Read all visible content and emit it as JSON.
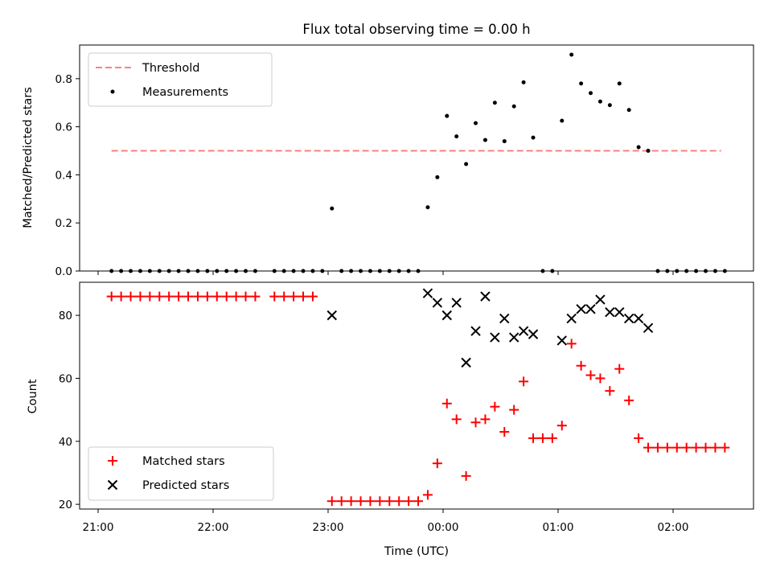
{
  "chart_data": [
    {
      "type": "scatter",
      "title": "Flux total observing time = 0.00 h",
      "xlabel": "",
      "ylabel": "Matched/Predicted stars",
      "ylim": [
        0,
        0.94
      ],
      "yticks": [
        "0.0",
        "0.2",
        "0.4",
        "0.6",
        "0.8"
      ],
      "grid": false,
      "legend": "upper left",
      "threshold": {
        "name": "Threshold",
        "value": 0.5,
        "x_range": [
          "21:07",
          "02:25"
        ],
        "color": "#ff7f7f"
      },
      "series": [
        {
          "name": "Measurements",
          "color": "#000000",
          "x": [
            "21:07",
            "21:12",
            "21:17",
            "21:22",
            "21:27",
            "21:32",
            "21:37",
            "21:42",
            "21:47",
            "21:52",
            "21:57",
            "22:02",
            "22:07",
            "22:12",
            "22:17",
            "22:22",
            "22:32",
            "22:37",
            "22:42",
            "22:47",
            "22:52",
            "22:57",
            "23:02",
            "23:07",
            "23:12",
            "23:17",
            "23:22",
            "23:27",
            "23:32",
            "23:37",
            "23:42",
            "23:47",
            "23:52",
            "23:57",
            "00:02",
            "00:07",
            "00:12",
            "00:17",
            "00:22",
            "00:27",
            "00:32",
            "00:37",
            "00:42",
            "00:47",
            "00:52",
            "00:57",
            "01:02",
            "01:07",
            "01:12",
            "01:17",
            "01:22",
            "01:27",
            "01:32",
            "01:37",
            "01:42",
            "01:47",
            "01:52",
            "01:57",
            "02:02",
            "02:07",
            "02:12",
            "02:17",
            "02:22",
            "02:27"
          ],
          "y": [
            0,
            0,
            0,
            0,
            0,
            0,
            0,
            0,
            0,
            0,
            0,
            0,
            0,
            0,
            0,
            0,
            0,
            0,
            0,
            0,
            0,
            0,
            0.26,
            0,
            0,
            0,
            0,
            0,
            0,
            0,
            0,
            0,
            0.265,
            0.39,
            0.645,
            0.56,
            0.445,
            0.615,
            0.545,
            0.7,
            0.54,
            0.685,
            0.785,
            0.555,
            0,
            0,
            0.625,
            0.9,
            0.78,
            0.74,
            0.705,
            0.69,
            0.78,
            0.67,
            0.515,
            0.5,
            0,
            0,
            0,
            0,
            0,
            0,
            0,
            0
          ]
        }
      ]
    },
    {
      "type": "scatter",
      "title": "",
      "xlabel": "Time (UTC)",
      "ylabel": "Count",
      "ylim": [
        18.5,
        90.5
      ],
      "yticks": [
        "20",
        "40",
        "60",
        "80"
      ],
      "xticks": [
        "21:00",
        "22:00",
        "23:00",
        "00:00",
        "01:00",
        "02:00"
      ],
      "grid": false,
      "legend": "lower left",
      "series": [
        {
          "name": "Matched stars",
          "marker": "plus",
          "color": "#ff0000",
          "x": [
            "21:07",
            "21:12",
            "21:17",
            "21:22",
            "21:27",
            "21:32",
            "21:37",
            "21:42",
            "21:47",
            "21:52",
            "21:57",
            "22:02",
            "22:07",
            "22:12",
            "22:17",
            "22:22",
            "22:32",
            "22:37",
            "22:42",
            "22:47",
            "22:52",
            "23:02",
            "23:07",
            "23:12",
            "23:17",
            "23:22",
            "23:27",
            "23:32",
            "23:37",
            "23:42",
            "23:47",
            "23:52",
            "23:57",
            "00:02",
            "00:07",
            "00:12",
            "00:17",
            "00:22",
            "00:27",
            "00:32",
            "00:37",
            "00:42",
            "00:47",
            "00:52",
            "00:57",
            "01:02",
            "01:07",
            "01:12",
            "01:17",
            "01:22",
            "01:27",
            "01:32",
            "01:37",
            "01:42",
            "01:47",
            "01:52",
            "01:57",
            "02:02",
            "02:07",
            "02:12",
            "02:17",
            "02:22",
            "02:27"
          ],
          "y": [
            86,
            86,
            86,
            86,
            86,
            86,
            86,
            86,
            86,
            86,
            86,
            86,
            86,
            86,
            86,
            86,
            86,
            86,
            86,
            86,
            86,
            21,
            21,
            21,
            21,
            21,
            21,
            21,
            21,
            21,
            21,
            23,
            33,
            52,
            47,
            29,
            46,
            47,
            51,
            43,
            50,
            59,
            41,
            41,
            41,
            45,
            71,
            64,
            61,
            60,
            56,
            63,
            53,
            41,
            38,
            38,
            38,
            38,
            38,
            38,
            38,
            38,
            38
          ]
        },
        {
          "name": "Predicted stars",
          "marker": "x",
          "color": "#000000",
          "x": [
            "23:02",
            "23:52",
            "23:57",
            "00:02",
            "00:07",
            "00:12",
            "00:17",
            "00:22",
            "00:27",
            "00:32",
            "00:37",
            "00:42",
            "00:47",
            "01:02",
            "01:07",
            "01:12",
            "01:17",
            "01:22",
            "01:27",
            "01:32",
            "01:37",
            "01:42",
            "01:47"
          ],
          "y": [
            80,
            87,
            84,
            80,
            84,
            65,
            75,
            86,
            73,
            79,
            73,
            75,
            74,
            72,
            79,
            82,
            82,
            85,
            81,
            81,
            79,
            79,
            76
          ]
        }
      ]
    }
  ]
}
